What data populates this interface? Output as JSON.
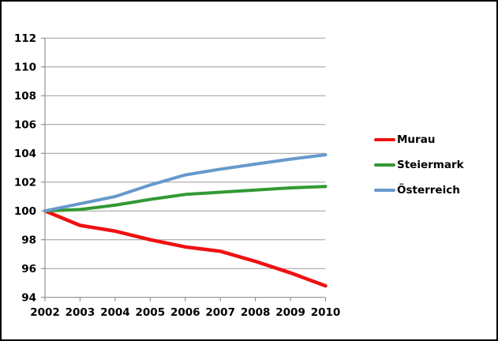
{
  "colors": {
    "background": "#ffffff",
    "frame_border": "#000000",
    "grid": "#9c9c9c",
    "axis": "#7f7f7f",
    "text": "#000000"
  },
  "chart_data": {
    "type": "line",
    "title": "",
    "x": [
      2002,
      2003,
      2004,
      2005,
      2006,
      2007,
      2008,
      2009,
      2010
    ],
    "xtick_labels": [
      "2002",
      "2003",
      "2004",
      "2005",
      "2006",
      "2007",
      "2008",
      "2009",
      "2010"
    ],
    "ylim": [
      94,
      112
    ],
    "ytick_step": 2,
    "ytick_labels": [
      "94",
      "96",
      "98",
      "100",
      "102",
      "104",
      "106",
      "108",
      "110",
      "112"
    ],
    "grid": true,
    "legend_position": "right-middle",
    "series": [
      {
        "name": "Murau",
        "color": "#ee1111",
        "values": [
          100,
          99.0,
          98.6,
          98.0,
          97.5,
          97.2,
          96.5,
          95.7,
          94.8
        ]
      },
      {
        "name": "Steiermark",
        "color": "#339933",
        "values": [
          100,
          100.1,
          100.4,
          100.8,
          101.15,
          101.3,
          101.45,
          101.6,
          101.7
        ]
      },
      {
        "name": "Österreich",
        "color": "#6699cc",
        "values": [
          100,
          100.5,
          101.0,
          101.8,
          102.5,
          102.9,
          103.25,
          103.6,
          103.9
        ]
      }
    ]
  }
}
